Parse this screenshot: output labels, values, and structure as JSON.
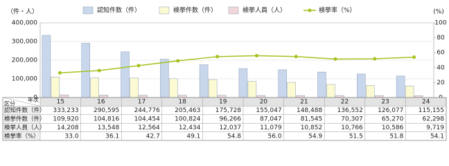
{
  "chart_data": {
    "type": "bar",
    "y_label": "（件・人）",
    "y2_label": "(%)",
    "categories": [
      "15",
      "16",
      "17",
      "18",
      "19",
      "20",
      "21",
      "22",
      "23",
      "24"
    ],
    "series": [
      {
        "name": "認知件数（件）",
        "color": "#c9d7ec",
        "values": [
          333233,
          290595,
          244776,
          205463,
          175728,
          155047,
          148488,
          136552,
          126077,
          115155
        ],
        "value_labels": [
          "333,233",
          "290,595",
          "244,776",
          "205,463",
          "175,728",
          "155,047",
          "148,488",
          "136,552",
          "126,077",
          "115,155"
        ]
      },
      {
        "name": "検挙件数（件）",
        "color": "#fcfad2",
        "values": [
          109920,
          104816,
          104454,
          100824,
          96266,
          87047,
          81545,
          70307,
          65270,
          62298
        ],
        "value_labels": [
          "109,920",
          "104,816",
          "104,454",
          "100,824",
          "96,266",
          "87,047",
          "81,545",
          "70,307",
          "65,270",
          "62,298"
        ]
      },
      {
        "name": "検挙人員（人）",
        "color": "#f1d6da",
        "values": [
          14208,
          13548,
          12564,
          12434,
          12037,
          11079,
          10852,
          10766,
          10586,
          9719
        ],
        "value_labels": [
          "14,208",
          "13,548",
          "12,564",
          "12,434",
          "12,037",
          "11,079",
          "10,852",
          "10,766",
          "10,586",
          "9,719"
        ]
      },
      {
        "name": "検挙率（%）",
        "type": "line",
        "axis": "y2",
        "color": "#a4c21e",
        "values": [
          33.0,
          36.1,
          42.7,
          49.1,
          54.8,
          56.0,
          54.9,
          51.5,
          51.8,
          54.1
        ],
        "value_labels": [
          "33.0",
          "36.1",
          "42.7",
          "49.1",
          "54.8",
          "56.0",
          "54.9",
          "51.5",
          "51.8",
          "54.1"
        ]
      }
    ],
    "ylim": [
      0,
      400000
    ],
    "yticks": [
      0,
      {
        "value": 100000,
        "label": "100,000"
      },
      {
        "value": 200000,
        "label": "200,000"
      },
      {
        "value": 300000,
        "label": "300,000"
      },
      {
        "value": 400000,
        "label": "400,000"
      }
    ],
    "y2lim": [
      0,
      100
    ],
    "y2ticks": [
      0,
      20,
      40,
      60,
      80,
      100
    ],
    "grid": true,
    "legend": "top",
    "table_header": {
      "row_label": "区分",
      "col_label": "年次"
    }
  }
}
